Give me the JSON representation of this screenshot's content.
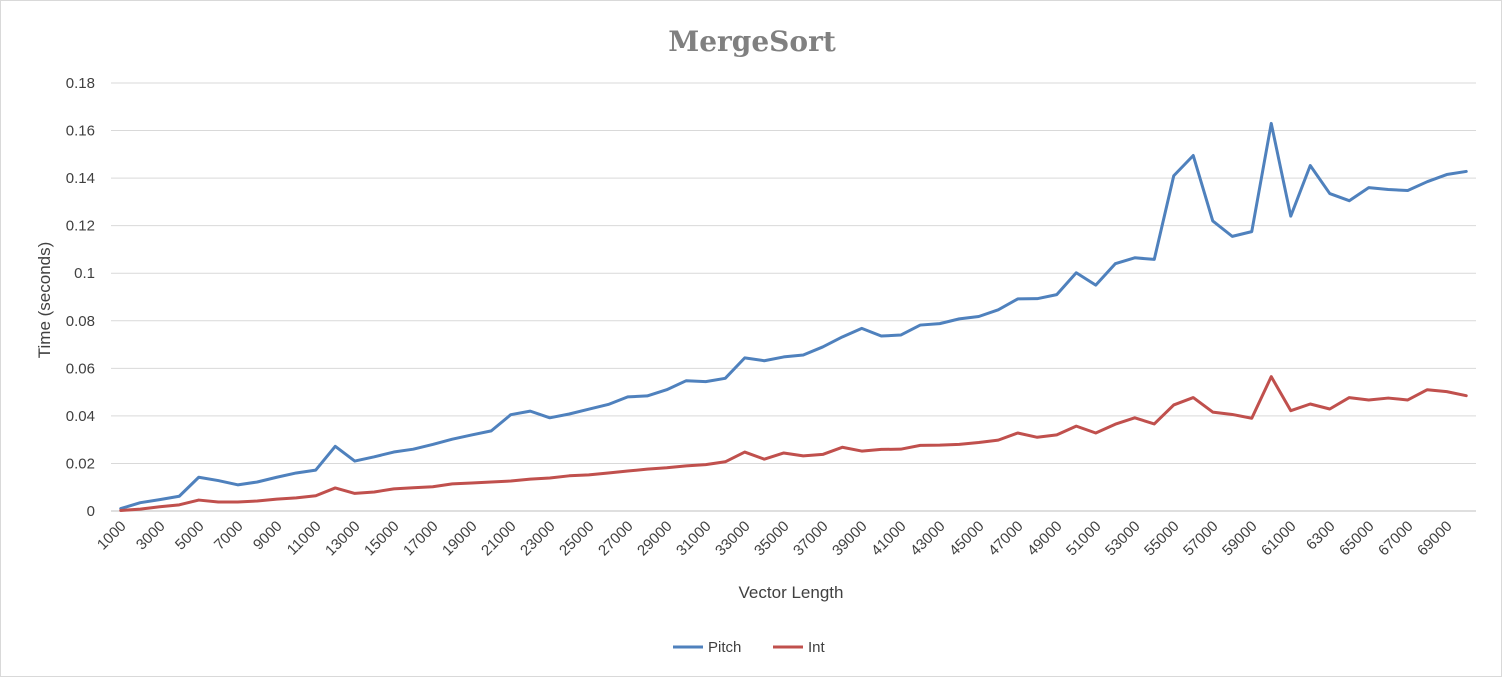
{
  "chart_data": {
    "type": "line",
    "title": "MergeSort",
    "xlabel": "Vector Length",
    "ylabel": "Time (seconds)",
    "ylim": [
      0,
      0.18
    ],
    "yticks": [
      "0",
      "0.02",
      "0.04",
      "0.06",
      "0.08",
      "0.1",
      "0.12",
      "0.14",
      "0.16",
      "0.18"
    ],
    "grid": true,
    "legend_position": "bottom",
    "categories": [
      "1000",
      "2000",
      "3000",
      "4000",
      "5000",
      "6000",
      "7000",
      "8000",
      "9000",
      "10000",
      "11000",
      "12000",
      "13000",
      "14000",
      "15000",
      "16000",
      "17000",
      "18000",
      "19000",
      "20000",
      "21000",
      "22000",
      "23000",
      "24000",
      "25000",
      "26000",
      "27000",
      "28000",
      "29000",
      "30000",
      "31000",
      "32000",
      "33000",
      "34000",
      "35000",
      "36000",
      "37000",
      "38000",
      "39000",
      "40000",
      "41000",
      "42000",
      "43000",
      "44000",
      "45000",
      "46000",
      "47000",
      "48000",
      "49000",
      "50000",
      "51000",
      "52000",
      "53000",
      "54000",
      "55000",
      "56000",
      "57000",
      "58000",
      "59000",
      "60000",
      "61000",
      "62000",
      "6300",
      "64000",
      "65000",
      "66000",
      "67000",
      "68000",
      "69000",
      "70000"
    ],
    "series": [
      {
        "name": "Pitch",
        "color": "#4f81bd",
        "values": [
          0.001,
          0.0035,
          0.0048,
          0.0062,
          0.0142,
          0.0128,
          0.011,
          0.0122,
          0.0142,
          0.016,
          0.0172,
          0.0272,
          0.021,
          0.0228,
          0.0248,
          0.026,
          0.028,
          0.0302,
          0.032,
          0.0337,
          0.0405,
          0.042,
          0.0392,
          0.0408,
          0.0428,
          0.0448,
          0.048,
          0.0484,
          0.051,
          0.0548,
          0.0544,
          0.0558,
          0.0644,
          0.0632,
          0.0648,
          0.0656,
          0.069,
          0.0732,
          0.0768,
          0.0736,
          0.074,
          0.0782,
          0.0788,
          0.0808,
          0.0818,
          0.0846,
          0.0892,
          0.0893,
          0.091,
          0.1002,
          0.095,
          0.104,
          0.1065,
          0.1058,
          0.141,
          0.1495,
          0.122,
          0.1155,
          0.1175,
          0.163,
          0.124,
          0.1453,
          0.1335,
          0.1305,
          0.136,
          0.1352,
          0.1348,
          0.1385,
          0.1415,
          0.1428
        ]
      },
      {
        "name": "Int",
        "color": "#c0504d",
        "values": [
          0.0002,
          0.0008,
          0.0018,
          0.0026,
          0.0046,
          0.0038,
          0.0038,
          0.0042,
          0.005,
          0.0055,
          0.0064,
          0.0097,
          0.0074,
          0.008,
          0.0093,
          0.0098,
          0.0102,
          0.0114,
          0.0118,
          0.0122,
          0.0126,
          0.0134,
          0.0139,
          0.0148,
          0.0152,
          0.016,
          0.0168,
          0.0176,
          0.0182,
          0.019,
          0.0195,
          0.0207,
          0.0248,
          0.0218,
          0.0244,
          0.0232,
          0.0238,
          0.0268,
          0.0252,
          0.0259,
          0.026,
          0.0276,
          0.0277,
          0.028,
          0.0288,
          0.0298,
          0.0328,
          0.031,
          0.032,
          0.0357,
          0.0328,
          0.0365,
          0.0392,
          0.0366,
          0.0446,
          0.0477,
          0.0416,
          0.0406,
          0.039,
          0.0565,
          0.0422,
          0.045,
          0.0429,
          0.0477,
          0.0467,
          0.0475,
          0.0467,
          0.051,
          0.0502,
          0.0485
        ]
      }
    ]
  }
}
